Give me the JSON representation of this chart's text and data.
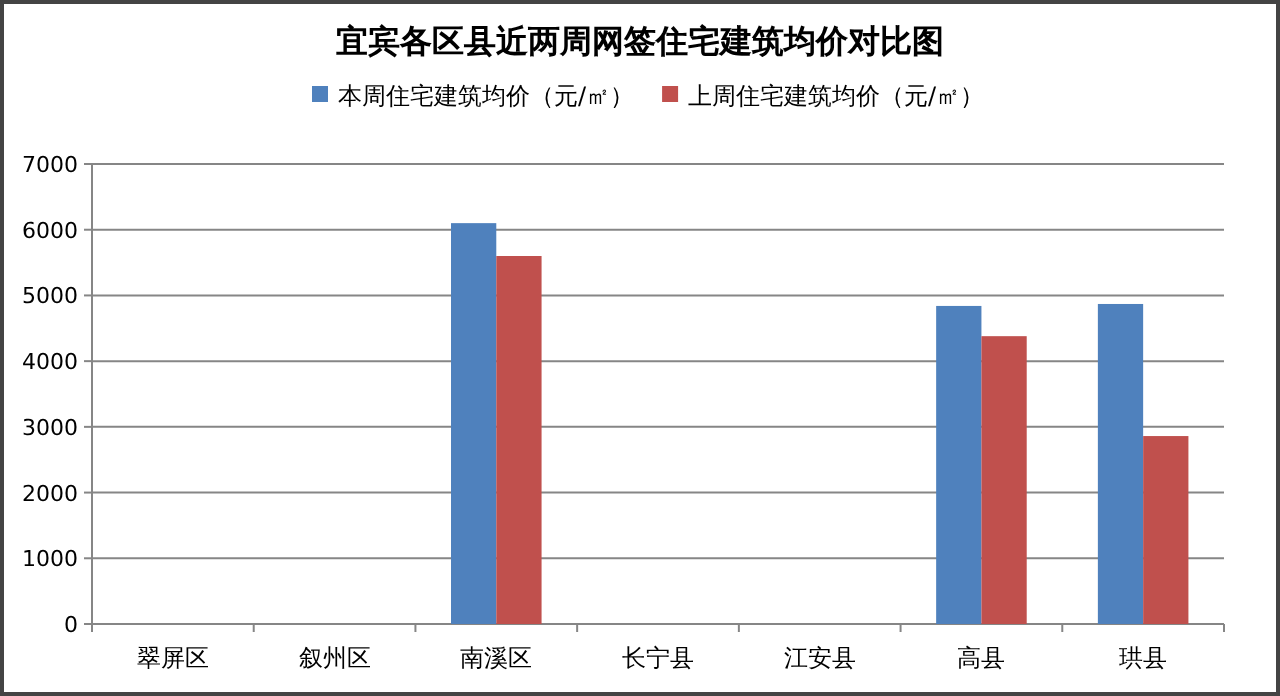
{
  "chart_data": {
    "type": "bar",
    "title": "宜宾各区县近两周网签住宅建筑均价对比图",
    "categories": [
      "翠屏区",
      "叙州区",
      "南溪区",
      "长宁县",
      "江安县",
      "高县",
      "珙县"
    ],
    "series": [
      {
        "name": "本周住宅建筑均价（元/㎡）",
        "color": "#4f81bd",
        "values": [
          null,
          null,
          6100,
          null,
          null,
          4840,
          4870
        ]
      },
      {
        "name": "上周住宅建筑均价（元/㎡）",
        "color": "#c0504d",
        "values": [
          null,
          null,
          5600,
          null,
          null,
          4380,
          2860
        ]
      }
    ],
    "ylim": [
      0,
      7000
    ],
    "yticks": [
      0,
      1000,
      2000,
      3000,
      4000,
      5000,
      6000,
      7000
    ],
    "grid": "y",
    "legend": "top"
  }
}
